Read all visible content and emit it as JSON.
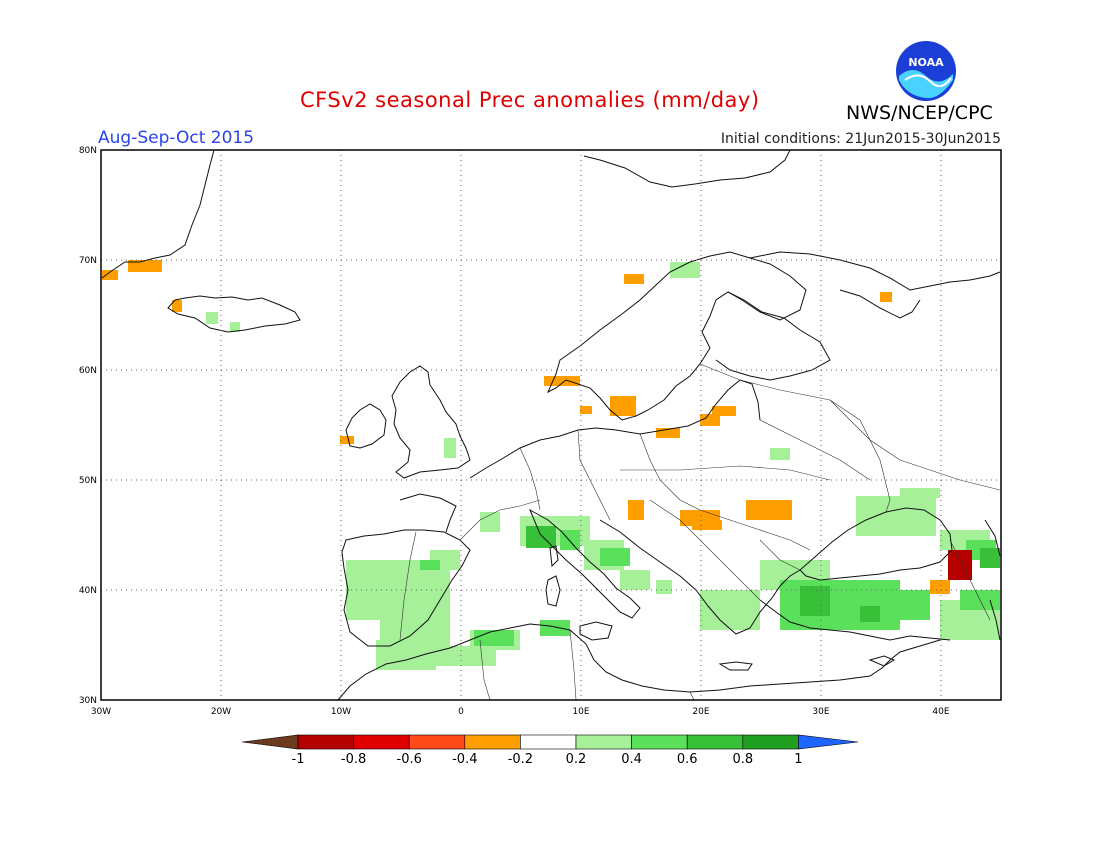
{
  "header": {
    "title": "CFSv2 seasonal Prec anomalies (mm/day)",
    "season": "Aug-Sep-Oct 2015",
    "initial_conditions": "Initial conditions: 21Jun2015-30Jun2015",
    "agency": "NWS/NCEP/CPC",
    "logo_text": "NOAA"
  },
  "map": {
    "lon_range": [
      -30,
      45
    ],
    "lat_range": [
      30,
      80
    ],
    "lat_ticks": [
      "30N",
      "40N",
      "50N",
      "60N",
      "70N",
      "80N"
    ],
    "lon_ticks": [
      "30W",
      "20W",
      "10W",
      "0",
      "10E",
      "20E",
      "30E",
      "40E"
    ],
    "lat_values": [
      30,
      40,
      50,
      60,
      70,
      80
    ],
    "lon_values": [
      -30,
      -20,
      -10,
      0,
      10,
      20,
      30,
      40
    ]
  },
  "colorbar": {
    "labels": [
      "-1",
      "-0.8",
      "-0.6",
      "-0.4",
      "-0.2",
      "0.2",
      "0.4",
      "0.6",
      "0.8",
      "1"
    ],
    "colors": [
      "#6b3a1f",
      "#b50000",
      "#e00000",
      "#ff4a1a",
      "#ff9e00",
      "#ffffff",
      "#a6f09a",
      "#5ae05a",
      "#38c038",
      "#209e20",
      "#1e64ff"
    ]
  }
}
